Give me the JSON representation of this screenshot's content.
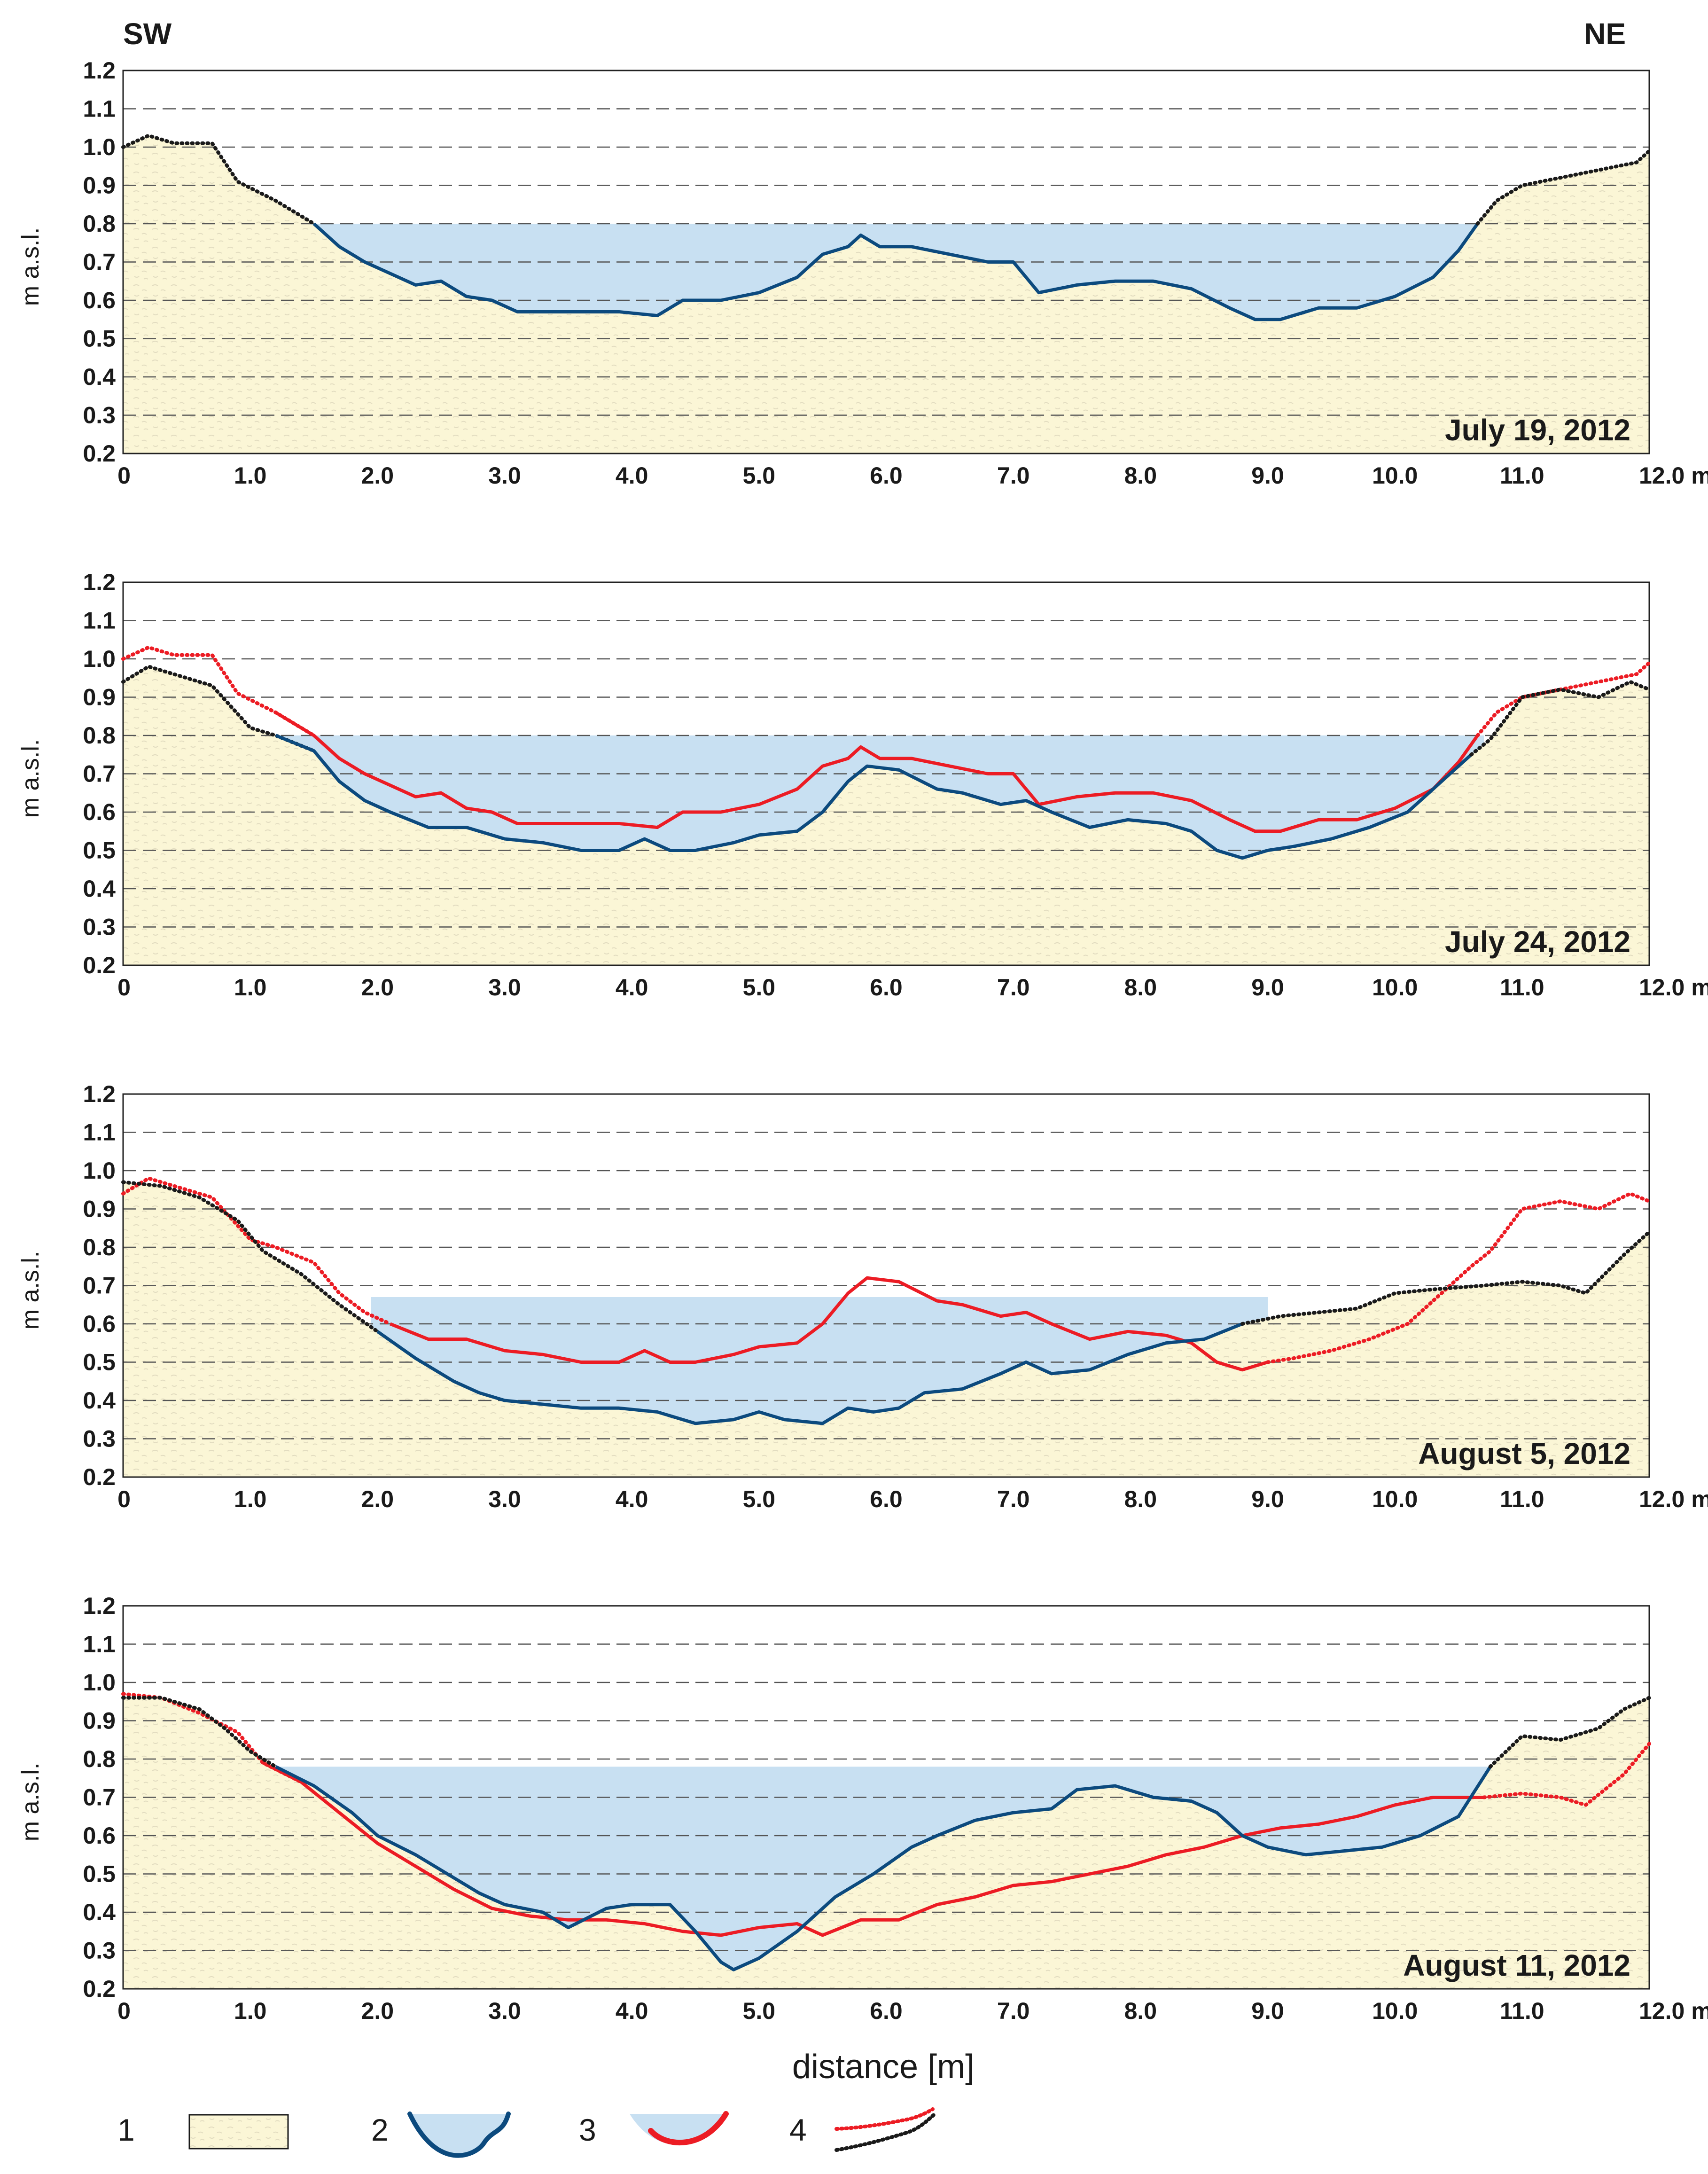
{
  "header": {
    "left_label": "SW",
    "right_label": "NE"
  },
  "colors": {
    "ground": "#fbf6d6",
    "water": "#c8e0f2",
    "current_line": "#0c4a7e",
    "previous_line": "#ec1c24",
    "grid": "#555555"
  },
  "chart_data": {
    "type": "line",
    "xlim": [
      0,
      12
    ],
    "ylim": [
      0.2,
      1.2
    ],
    "x_ticks": [
      0,
      1,
      2,
      3,
      4,
      5,
      6,
      7,
      8,
      9,
      10,
      11,
      12
    ],
    "x_tick_labels": [
      "0",
      "1.0",
      "2.0",
      "3.0",
      "4.0",
      "5.0",
      "6.0",
      "7.0",
      "8.0",
      "9.0",
      "10.0",
      "11.0",
      "12.0 m"
    ],
    "y_ticks": [
      0.2,
      0.3,
      0.4,
      0.5,
      0.6,
      0.7,
      0.8,
      0.9,
      1.0,
      1.1,
      1.2
    ],
    "y_tick_labels": [
      "0.2",
      "0.3",
      "0.4",
      "0.5",
      "0.6",
      "0.7",
      "0.8",
      "0.9",
      "1.0",
      "1.1",
      "1.2"
    ],
    "ylabel": "m a.s.l.",
    "xlabel": "distance  [m]",
    "panels": [
      {
        "date": "July 19, 2012",
        "water_level": 0.8,
        "water_range": [
          1.45,
          10.65
        ],
        "series": [
          {
            "name": "cross-section July 19, 2012",
            "role": "current",
            "x": [
              0,
              0.2,
              0.4,
              0.7,
              0.9,
              1.2,
              1.5,
              1.7,
              1.9,
              2.1,
              2.3,
              2.5,
              2.7,
              2.9,
              3.1,
              3.3,
              3.6,
              3.9,
              4.2,
              4.4,
              4.7,
              5.0,
              5.3,
              5.5,
              5.7,
              5.8,
              5.95,
              6.2,
              6.5,
              6.8,
              7.0,
              7.2,
              7.5,
              7.8,
              8.1,
              8.4,
              8.7,
              8.9,
              9.1,
              9.4,
              9.7,
              10.0,
              10.3,
              10.5,
              10.65,
              10.8,
              11.0,
              11.3,
              11.6,
              11.9,
              12.0
            ],
            "y": [
              1.0,
              1.03,
              1.01,
              1.01,
              0.91,
              0.86,
              0.8,
              0.74,
              0.7,
              0.67,
              0.64,
              0.65,
              0.61,
              0.6,
              0.57,
              0.57,
              0.57,
              0.57,
              0.56,
              0.6,
              0.6,
              0.62,
              0.66,
              0.72,
              0.74,
              0.77,
              0.74,
              0.74,
              0.72,
              0.7,
              0.7,
              0.62,
              0.64,
              0.65,
              0.65,
              0.63,
              0.58,
              0.55,
              0.55,
              0.58,
              0.58,
              0.61,
              0.66,
              0.73,
              0.8,
              0.86,
              0.9,
              0.92,
              0.94,
              0.96,
              0.99
            ]
          }
        ]
      },
      {
        "date": "July 24, 2012",
        "water_level": 0.8,
        "water_range": [
          1.2,
          10.7
        ],
        "series": [
          {
            "name": "cross-section July 24, 2012",
            "role": "current",
            "x": [
              0,
              0.2,
              0.5,
              0.7,
              1.0,
              1.2,
              1.5,
              1.7,
              1.9,
              2.1,
              2.4,
              2.7,
              3.0,
              3.3,
              3.6,
              3.9,
              4.1,
              4.3,
              4.5,
              4.8,
              5.0,
              5.3,
              5.5,
              5.7,
              5.85,
              6.1,
              6.4,
              6.6,
              6.9,
              7.1,
              7.3,
              7.6,
              7.9,
              8.2,
              8.4,
              8.6,
              8.8,
              9.0,
              9.2,
              9.5,
              9.8,
              10.1,
              10.4,
              10.6,
              10.75,
              11.0,
              11.3,
              11.6,
              11.85,
              12.0
            ],
            "y": [
              0.94,
              0.98,
              0.95,
              0.93,
              0.82,
              0.8,
              0.76,
              0.68,
              0.63,
              0.6,
              0.56,
              0.56,
              0.53,
              0.52,
              0.5,
              0.5,
              0.53,
              0.5,
              0.5,
              0.52,
              0.54,
              0.55,
              0.6,
              0.68,
              0.72,
              0.71,
              0.66,
              0.65,
              0.62,
              0.63,
              0.6,
              0.56,
              0.58,
              0.57,
              0.55,
              0.5,
              0.48,
              0.5,
              0.51,
              0.53,
              0.56,
              0.6,
              0.69,
              0.75,
              0.79,
              0.9,
              0.92,
              0.9,
              0.94,
              0.92
            ]
          },
          {
            "name": "cross-section July 19, 2012",
            "role": "previous",
            "x": [
              0,
              0.2,
              0.4,
              0.7,
              0.9,
              1.2,
              1.5,
              1.7,
              1.9,
              2.1,
              2.3,
              2.5,
              2.7,
              2.9,
              3.1,
              3.3,
              3.6,
              3.9,
              4.2,
              4.4,
              4.7,
              5.0,
              5.3,
              5.5,
              5.7,
              5.8,
              5.95,
              6.2,
              6.5,
              6.8,
              7.0,
              7.2,
              7.5,
              7.8,
              8.1,
              8.4,
              8.7,
              8.9,
              9.1,
              9.4,
              9.7,
              10.0,
              10.3,
              10.5,
              10.65,
              10.8,
              11.0,
              11.3,
              11.6,
              11.9,
              12.0
            ],
            "y": [
              1.0,
              1.03,
              1.01,
              1.01,
              0.91,
              0.86,
              0.8,
              0.74,
              0.7,
              0.67,
              0.64,
              0.65,
              0.61,
              0.6,
              0.57,
              0.57,
              0.57,
              0.57,
              0.56,
              0.6,
              0.6,
              0.62,
              0.66,
              0.72,
              0.74,
              0.77,
              0.74,
              0.74,
              0.72,
              0.7,
              0.7,
              0.62,
              0.64,
              0.65,
              0.65,
              0.63,
              0.58,
              0.55,
              0.55,
              0.58,
              0.58,
              0.61,
              0.66,
              0.73,
              0.8,
              0.86,
              0.9,
              0.92,
              0.94,
              0.96,
              0.99
            ]
          }
        ]
      },
      {
        "date": "August 5, 2012",
        "water_level": 0.67,
        "water_range": [
          1.95,
          9.0
        ],
        "series": [
          {
            "name": "cross-section August 5, 2012",
            "role": "current",
            "x": [
              0,
              0.3,
              0.6,
              0.9,
              1.1,
              1.4,
              1.7,
              2.0,
              2.3,
              2.6,
              2.8,
              3.0,
              3.3,
              3.6,
              3.9,
              4.2,
              4.5,
              4.8,
              5.0,
              5.2,
              5.5,
              5.7,
              5.9,
              6.1,
              6.3,
              6.6,
              6.9,
              7.1,
              7.3,
              7.6,
              7.9,
              8.2,
              8.5,
              8.8,
              9.1,
              9.4,
              9.7,
              10.0,
              10.3,
              10.7,
              11.0,
              11.3,
              11.5,
              11.8,
              12.0
            ],
            "y": [
              0.97,
              0.96,
              0.93,
              0.87,
              0.79,
              0.73,
              0.65,
              0.58,
              0.51,
              0.45,
              0.42,
              0.4,
              0.39,
              0.38,
              0.38,
              0.37,
              0.34,
              0.35,
              0.37,
              0.35,
              0.34,
              0.38,
              0.37,
              0.38,
              0.42,
              0.43,
              0.47,
              0.5,
              0.47,
              0.48,
              0.52,
              0.55,
              0.56,
              0.6,
              0.62,
              0.63,
              0.64,
              0.68,
              0.69,
              0.7,
              0.71,
              0.7,
              0.68,
              0.78,
              0.84
            ]
          },
          {
            "name": "cross-section July 24, 2012",
            "role": "previous",
            "x": [
              0,
              0.2,
              0.5,
              0.7,
              1.0,
              1.2,
              1.5,
              1.7,
              1.9,
              2.1,
              2.4,
              2.7,
              3.0,
              3.3,
              3.6,
              3.9,
              4.1,
              4.3,
              4.5,
              4.8,
              5.0,
              5.3,
              5.5,
              5.7,
              5.85,
              6.1,
              6.4,
              6.6,
              6.9,
              7.1,
              7.3,
              7.6,
              7.9,
              8.2,
              8.4,
              8.6,
              8.8,
              9.0,
              9.2,
              9.5,
              9.8,
              10.1,
              10.4,
              10.6,
              10.75,
              11.0,
              11.3,
              11.6,
              11.85,
              12.0
            ],
            "y": [
              0.94,
              0.98,
              0.95,
              0.93,
              0.82,
              0.8,
              0.76,
              0.68,
              0.63,
              0.6,
              0.56,
              0.56,
              0.53,
              0.52,
              0.5,
              0.5,
              0.53,
              0.5,
              0.5,
              0.52,
              0.54,
              0.55,
              0.6,
              0.68,
              0.72,
              0.71,
              0.66,
              0.65,
              0.62,
              0.63,
              0.6,
              0.56,
              0.58,
              0.57,
              0.55,
              0.5,
              0.48,
              0.5,
              0.51,
              0.53,
              0.56,
              0.6,
              0.69,
              0.75,
              0.79,
              0.9,
              0.92,
              0.9,
              0.94,
              0.92
            ]
          }
        ]
      },
      {
        "date": "August 11, 2012",
        "water_level": 0.78,
        "water_range": [
          1.1,
          10.75
        ],
        "series": [
          {
            "name": "cross-section August 11, 2012",
            "role": "current",
            "x": [
              0,
              0.3,
              0.6,
              0.8,
              1.0,
              1.2,
              1.5,
              1.8,
              2.0,
              2.3,
              2.5,
              2.8,
              3.0,
              3.3,
              3.5,
              3.8,
              4.0,
              4.3,
              4.5,
              4.7,
              4.8,
              5.0,
              5.3,
              5.6,
              5.9,
              6.2,
              6.4,
              6.7,
              7.0,
              7.3,
              7.5,
              7.8,
              8.1,
              8.4,
              8.6,
              8.8,
              9.0,
              9.3,
              9.6,
              9.9,
              10.2,
              10.5,
              10.75,
              11.0,
              11.3,
              11.6,
              11.8,
              12.0
            ],
            "y": [
              0.96,
              0.96,
              0.93,
              0.88,
              0.82,
              0.78,
              0.73,
              0.66,
              0.6,
              0.55,
              0.51,
              0.45,
              0.42,
              0.4,
              0.36,
              0.41,
              0.42,
              0.42,
              0.35,
              0.27,
              0.25,
              0.28,
              0.35,
              0.44,
              0.5,
              0.57,
              0.6,
              0.64,
              0.66,
              0.67,
              0.72,
              0.73,
              0.7,
              0.69,
              0.66,
              0.6,
              0.57,
              0.55,
              0.56,
              0.57,
              0.6,
              0.65,
              0.78,
              0.86,
              0.85,
              0.88,
              0.93,
              0.96
            ]
          },
          {
            "name": "cross-section August 5, 2012",
            "role": "previous",
            "x": [
              0,
              0.3,
              0.6,
              0.9,
              1.1,
              1.4,
              1.7,
              2.0,
              2.3,
              2.6,
              2.9,
              3.2,
              3.5,
              3.8,
              4.1,
              4.4,
              4.7,
              5.0,
              5.3,
              5.5,
              5.8,
              6.1,
              6.4,
              6.7,
              7.0,
              7.3,
              7.6,
              7.9,
              8.2,
              8.5,
              8.8,
              9.1,
              9.4,
              9.7,
              10.0,
              10.3,
              10.7,
              11.0,
              11.3,
              11.5,
              11.8,
              12.0
            ],
            "y": [
              0.97,
              0.96,
              0.92,
              0.87,
              0.79,
              0.74,
              0.66,
              0.58,
              0.52,
              0.46,
              0.41,
              0.39,
              0.38,
              0.38,
              0.37,
              0.35,
              0.34,
              0.36,
              0.37,
              0.34,
              0.38,
              0.38,
              0.42,
              0.44,
              0.47,
              0.48,
              0.5,
              0.52,
              0.55,
              0.57,
              0.6,
              0.62,
              0.63,
              0.65,
              0.68,
              0.7,
              0.7,
              0.71,
              0.7,
              0.68,
              0.76,
              0.84
            ]
          }
        ]
      }
    ]
  },
  "legend": [
    {
      "number": "1"
    },
    {
      "number": "2"
    },
    {
      "number": "3"
    },
    {
      "number": "4"
    }
  ]
}
